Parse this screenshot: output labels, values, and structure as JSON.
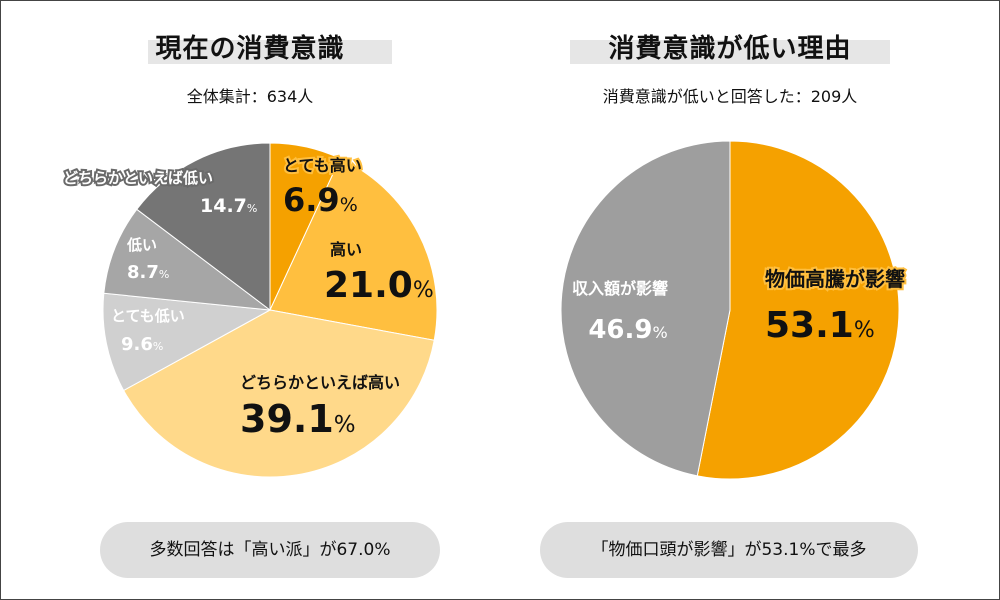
{
  "left": {
    "title": "現在の消費意識",
    "subtitle": "全体集計：634人",
    "summary": "多数回答は「高い派」が67.0%"
  },
  "right": {
    "title": "消費意識が低い理由",
    "subtitle": "消費意識が低いと回答した：209人",
    "summary": "「物価口頭が影響」が53.1%で最多"
  },
  "chart_data": [
    {
      "type": "pie",
      "title": "現在の消費意識",
      "slices": [
        {
          "label": "とても高い",
          "value": 6.9,
          "color": "#f5a100"
        },
        {
          "label": "高い",
          "value": 21.0,
          "color": "#ffbf3f"
        },
        {
          "label": "どちらかといえば高い",
          "value": 39.1,
          "color": "#ffd98a"
        },
        {
          "label": "とても低い",
          "value": 9.6,
          "color": "#d0d0d0"
        },
        {
          "label": "低い",
          "value": 8.7,
          "color": "#a6a6a6"
        },
        {
          "label": "どちらかといえば低い",
          "value": 14.7,
          "color": "#757575"
        }
      ]
    },
    {
      "type": "pie",
      "title": "消費意識が低い理由",
      "slices": [
        {
          "label": "物価高騰が影響",
          "value": 53.1,
          "color": "#f5a100"
        },
        {
          "label": "収入額が影響",
          "value": 46.9,
          "color": "#9e9e9e"
        }
      ]
    }
  ]
}
